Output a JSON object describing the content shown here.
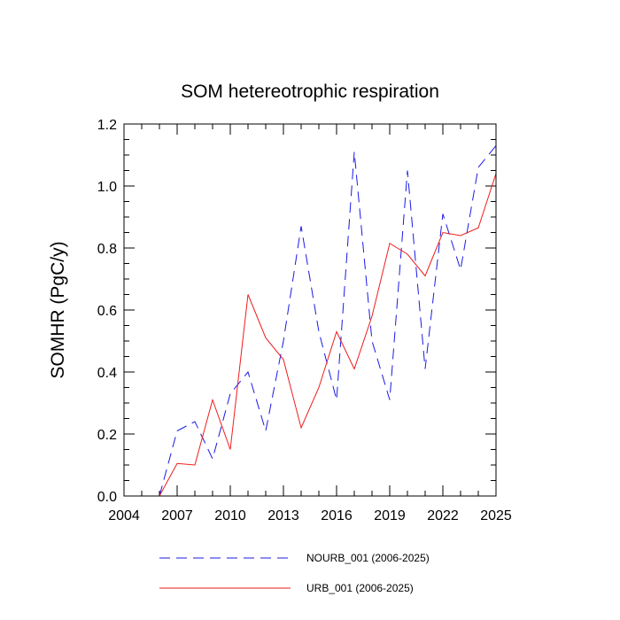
{
  "chart_data": {
    "type": "line",
    "title": "SOM hetereotrophic respiration",
    "xlabel": "",
    "ylabel": "SOMHR  (PgC/y)",
    "xlim": [
      2004,
      2025
    ],
    "ylim": [
      0,
      1.2
    ],
    "x_ticks": [
      2004,
      2007,
      2010,
      2013,
      2016,
      2019,
      2022,
      2025
    ],
    "y_ticks": [
      0.0,
      0.2,
      0.4,
      0.6,
      0.8,
      1.0,
      1.2
    ],
    "x_tick_labels": [
      "2004",
      "2007",
      "2010",
      "2013",
      "2016",
      "2019",
      "2022",
      "2025"
    ],
    "y_tick_labels": [
      "0.0",
      "0.2",
      "0.4",
      "0.6",
      "0.8",
      "1.0",
      "1.2"
    ],
    "x": [
      2006,
      2007,
      2008,
      2009,
      2010,
      2011,
      2012,
      2013,
      2014,
      2015,
      2016,
      2017,
      2018,
      2019,
      2020,
      2021,
      2022,
      2023,
      2024,
      2025
    ],
    "series": [
      {
        "name": "NOURB_001 (2006-2025)",
        "color": "#1a1ae6",
        "style": "dashed",
        "values": [
          0.0,
          0.21,
          0.24,
          0.12,
          0.33,
          0.4,
          0.21,
          0.5,
          0.87,
          0.53,
          0.31,
          1.11,
          0.5,
          0.31,
          1.05,
          0.41,
          0.91,
          0.73,
          1.06,
          1.13
        ]
      },
      {
        "name": "URB_001 (2006-2025)",
        "color": "#ee1c1c",
        "style": "solid",
        "values": [
          0.0,
          0.105,
          0.1,
          0.31,
          0.15,
          0.65,
          0.51,
          0.44,
          0.22,
          0.35,
          0.53,
          0.41,
          0.58,
          0.815,
          0.78,
          0.71,
          0.85,
          0.84,
          0.865,
          1.04
        ]
      }
    ]
  }
}
